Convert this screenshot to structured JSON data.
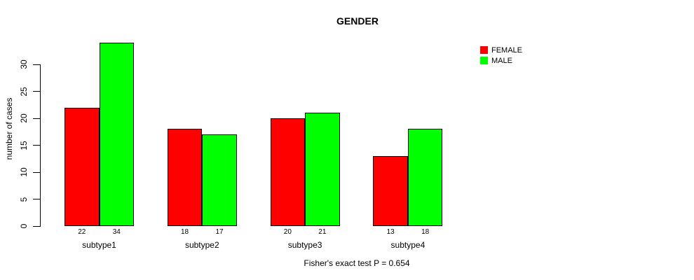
{
  "chart_data": {
    "type": "bar",
    "title": "GENDER",
    "ylabel": "number of cases",
    "xlabel": "",
    "annotation": "Fisher's exact test P = 0.654",
    "categories": [
      "subtype1",
      "subtype2",
      "subtype3",
      "subtype4"
    ],
    "series": [
      {
        "name": "FEMALE",
        "color": "#ff0000",
        "values": [
          22,
          18,
          20,
          13
        ]
      },
      {
        "name": "MALE",
        "color": "#00ff00",
        "values": [
          34,
          17,
          21,
          18
        ]
      }
    ],
    "show_bar_values": true,
    "yticks": [
      0,
      5,
      10,
      15,
      20,
      25,
      30
    ],
    "ylim": [
      0,
      35
    ],
    "grid": false,
    "legend_position": "top-right",
    "bar_edge_color": "#000000",
    "background": "#ffffff"
  }
}
